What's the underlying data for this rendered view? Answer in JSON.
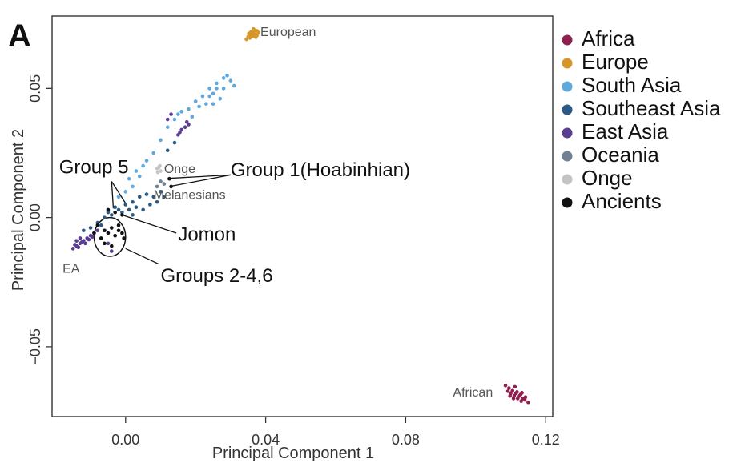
{
  "panel_label": "A",
  "legend": [
    {
      "label": "Africa",
      "color": "#8e1f4e"
    },
    {
      "label": "Europe",
      "color": "#d6962a"
    },
    {
      "label": "South Asia",
      "color": "#5fa8dc"
    },
    {
      "label": "Southeast Asia",
      "color": "#2c5a84"
    },
    {
      "label": "East Asia",
      "color": "#5a3d91"
    },
    {
      "label": "Oceania",
      "color": "#6f8193"
    },
    {
      "label": "Onge",
      "color": "#c4c4c4"
    },
    {
      "label": "Ancients",
      "color": "#111111"
    }
  ],
  "chart_data": {
    "type": "scatter",
    "xlabel": "Principal Component 1",
    "ylabel": "Principal Component 2",
    "xlim": [
      -0.021,
      0.122
    ],
    "ylim": [
      -0.077,
      0.078
    ],
    "xticks": [
      {
        "v": 0.0,
        "label": "0.00"
      },
      {
        "v": 0.04,
        "label": "0.04"
      },
      {
        "v": 0.08,
        "label": "0.08"
      },
      {
        "v": 0.12,
        "label": "0.12"
      }
    ],
    "yticks": [
      {
        "v": 0.05,
        "label": "0.05"
      },
      {
        "v": 0.0,
        "label": "0.00"
      },
      {
        "v": -0.05,
        "label": "−0.05"
      }
    ],
    "grid": false,
    "legend_position": "right, outside plot",
    "series": [
      {
        "name": "Africa",
        "color": "#8e1f4e",
        "points": [
          [
            0.1085,
            -0.065
          ],
          [
            0.1095,
            -0.066
          ],
          [
            0.11,
            -0.068
          ],
          [
            0.1105,
            -0.067
          ],
          [
            0.111,
            -0.069
          ],
          [
            0.1115,
            -0.068
          ],
          [
            0.112,
            -0.07
          ],
          [
            0.1125,
            -0.069
          ],
          [
            0.113,
            -0.071
          ],
          [
            0.1135,
            -0.07
          ],
          [
            0.114,
            -0.0705
          ],
          [
            0.115,
            -0.0715
          ],
          [
            0.1108,
            -0.07
          ],
          [
            0.1118,
            -0.0675
          ],
          [
            0.1128,
            -0.0685
          ],
          [
            0.1092,
            -0.0672
          ],
          [
            0.1142,
            -0.0695
          ],
          [
            0.1112,
            -0.0655
          ],
          [
            0.1098,
            -0.069
          ],
          [
            0.1132,
            -0.0678
          ]
        ]
      },
      {
        "name": "Europe",
        "color": "#d6962a",
        "points": [
          [
            0.035,
            0.07
          ],
          [
            0.0355,
            0.071
          ],
          [
            0.036,
            0.072
          ],
          [
            0.0365,
            0.0715
          ],
          [
            0.037,
            0.0725
          ],
          [
            0.0375,
            0.0705
          ],
          [
            0.036,
            0.07
          ],
          [
            0.037,
            0.071
          ],
          [
            0.038,
            0.0715
          ],
          [
            0.0355,
            0.0695
          ],
          [
            0.0365,
            0.073
          ],
          [
            0.0372,
            0.0698
          ],
          [
            0.0345,
            0.069
          ],
          [
            0.0358,
            0.0718
          ],
          [
            0.0368,
            0.0702
          ],
          [
            0.0376,
            0.0722
          ],
          [
            0.0362,
            0.0708
          ],
          [
            0.0352,
            0.0712
          ]
        ]
      },
      {
        "name": "South Asia",
        "color": "#5fa8dc",
        "points": [
          [
            0.001,
            0.015
          ],
          [
            0.003,
            0.018
          ],
          [
            0.005,
            0.02
          ],
          [
            0.008,
            0.025
          ],
          [
            0.01,
            0.03
          ],
          [
            0.012,
            0.035
          ],
          [
            0.015,
            0.04
          ],
          [
            0.018,
            0.042
          ],
          [
            0.02,
            0.045
          ],
          [
            0.022,
            0.047
          ],
          [
            0.024,
            0.05
          ],
          [
            0.025,
            0.048
          ],
          [
            0.026,
            0.052
          ],
          [
            0.028,
            0.054
          ],
          [
            0.03,
            0.053
          ],
          [
            0.031,
            0.051
          ],
          [
            0.029,
            0.055
          ],
          [
            0.027,
            0.046
          ],
          [
            0.023,
            0.044
          ],
          [
            0.021,
            0.043
          ],
          [
            0.019,
            0.039
          ],
          [
            0.026,
            0.05
          ],
          [
            0.025,
            0.044
          ],
          [
            0.028,
            0.05
          ],
          [
            0.024,
            0.047
          ],
          [
            0.006,
            0.022
          ],
          [
            0.004,
            0.016
          ],
          [
            0.002,
            0.012
          ],
          [
            0.0,
            0.01
          ],
          [
            -0.002,
            0.008
          ],
          [
            0.014,
            0.038
          ],
          [
            0.016,
            0.041
          ]
        ]
      },
      {
        "name": "Southeast Asia",
        "color": "#2c5a84",
        "points": [
          [
            -0.012,
            -0.005
          ],
          [
            -0.01,
            -0.004
          ],
          [
            -0.008,
            -0.002
          ],
          [
            -0.006,
            0.0
          ],
          [
            -0.004,
            0.001
          ],
          [
            -0.002,
            0.003
          ],
          [
            0.0,
            0.005
          ],
          [
            0.002,
            0.006
          ],
          [
            0.004,
            0.008
          ],
          [
            0.006,
            0.009
          ],
          [
            0.008,
            0.008
          ],
          [
            0.01,
            0.01
          ],
          [
            0.003,
            0.004
          ],
          [
            0.005,
            0.003
          ],
          [
            0.007,
            0.005
          ],
          [
            -0.005,
            0.002
          ],
          [
            -0.003,
            0.004
          ],
          [
            -0.001,
            0.002
          ],
          [
            0.001,
            0.003
          ],
          [
            0.009,
            0.006
          ],
          [
            0.011,
            0.008
          ],
          [
            0.002,
            0.001
          ],
          [
            0.014,
            0.029
          ],
          [
            0.012,
            0.026
          ],
          [
            -0.007,
            -0.003
          ]
        ]
      },
      {
        "name": "East Asia",
        "color": "#5a3d91",
        "points": [
          [
            -0.015,
            -0.012
          ],
          [
            -0.014,
            -0.011
          ],
          [
            -0.013,
            -0.01
          ],
          [
            -0.012,
            -0.009
          ],
          [
            -0.011,
            -0.008
          ],
          [
            -0.01,
            -0.007
          ],
          [
            -0.009,
            -0.006
          ],
          [
            -0.008,
            -0.005
          ],
          [
            -0.0145,
            -0.0105
          ],
          [
            -0.0135,
            -0.0115
          ],
          [
            -0.0125,
            -0.0095
          ],
          [
            -0.0115,
            -0.01
          ],
          [
            -0.0105,
            -0.0085
          ],
          [
            -0.0095,
            -0.0075
          ],
          [
            -0.014,
            -0.009
          ],
          [
            -0.013,
            -0.008
          ],
          [
            0.015,
            0.032
          ],
          [
            0.016,
            0.034
          ],
          [
            0.017,
            0.035
          ],
          [
            0.018,
            0.036
          ],
          [
            0.0155,
            0.033
          ],
          [
            0.0175,
            0.037
          ],
          [
            0.012,
            0.038
          ],
          [
            0.013,
            0.04
          ],
          [
            -0.005,
            -0.01
          ],
          [
            -0.004,
            -0.013
          ]
        ]
      },
      {
        "name": "Oceania",
        "color": "#6f8193",
        "points": [
          [
            0.009,
            0.012
          ],
          [
            0.01,
            0.014
          ],
          [
            0.011,
            0.013
          ]
        ]
      },
      {
        "name": "Onge",
        "color": "#c4c4c4",
        "points": [
          [
            0.009,
            0.019
          ],
          [
            0.0095,
            0.0195
          ],
          [
            0.01,
            0.018
          ],
          [
            0.0092,
            0.0175
          ],
          [
            0.0098,
            0.02
          ]
        ]
      },
      {
        "name": "Ancients",
        "color": "#111111",
        "points": [
          [
            0.0125,
            0.015
          ],
          [
            0.013,
            0.012
          ],
          [
            -0.006,
            -0.005
          ],
          [
            -0.005,
            -0.006
          ],
          [
            -0.004,
            -0.004
          ],
          [
            -0.003,
            -0.007
          ],
          [
            -0.007,
            -0.008
          ],
          [
            -0.002,
            -0.005
          ],
          [
            -0.001,
            -0.006
          ],
          [
            -0.008,
            -0.003
          ],
          [
            -0.006,
            -0.01
          ],
          [
            -0.004,
            -0.011
          ],
          [
            -0.003,
            0.002
          ],
          [
            -0.005,
            0.003
          ],
          [
            -0.001,
            0.001
          ],
          [
            -0.002,
            -0.003
          ],
          [
            -0.009,
            -0.006
          ],
          [
            -0.0005,
            -0.008
          ]
        ]
      }
    ],
    "annotations": [
      {
        "text": "European",
        "x": 0.0385,
        "y": 0.0715,
        "size": 16,
        "color": "#555555"
      },
      {
        "text": "Onge",
        "x": 0.011,
        "y": 0.0185,
        "size": 16,
        "color": "#555555"
      },
      {
        "text": "Melanesians",
        "x": 0.008,
        "y": 0.0085,
        "size": 16,
        "color": "#555555"
      },
      {
        "text": "EA",
        "x": -0.018,
        "y": -0.02,
        "size": 16,
        "color": "#555555"
      },
      {
        "text": "African",
        "x": 0.0935,
        "y": -0.068,
        "size": 16,
        "color": "#555555"
      },
      {
        "text": "Group 5",
        "x": -0.019,
        "y": 0.019,
        "size": 24,
        "color": "#111111"
      },
      {
        "text": "Group 1(Hoabinhian)",
        "x": 0.03,
        "y": 0.018,
        "size": 24,
        "color": "#111111"
      },
      {
        "text": "Jomon",
        "x": 0.015,
        "y": -0.007,
        "size": 24,
        "color": "#111111"
      },
      {
        "text": "Groups 2-4,6",
        "x": 0.01,
        "y": -0.023,
        "size": 24,
        "color": "#111111"
      }
    ],
    "circle": {
      "x": -0.0045,
      "y": -0.0075,
      "rx": 0.0045,
      "ry": 0.0075
    },
    "leader_lines": [
      {
        "from": [
          -0.004,
          0.014
        ],
        "to": [
          -0.0035,
          0.0035
        ]
      },
      {
        "from": [
          -0.004,
          0.014
        ],
        "to": [
          0.0,
          0.0055
        ]
      },
      {
        "from": [
          0.03,
          0.0165
        ],
        "to": [
          0.0128,
          0.0152
        ]
      },
      {
        "from": [
          0.03,
          0.0165
        ],
        "to": [
          0.0132,
          0.0122
        ]
      },
      {
        "from": [
          0.0145,
          -0.006
        ],
        "to": [
          -0.001,
          0.001
        ]
      },
      {
        "from": [
          0.0095,
          -0.018
        ],
        "to": [
          0.0,
          -0.012
        ]
      }
    ]
  }
}
